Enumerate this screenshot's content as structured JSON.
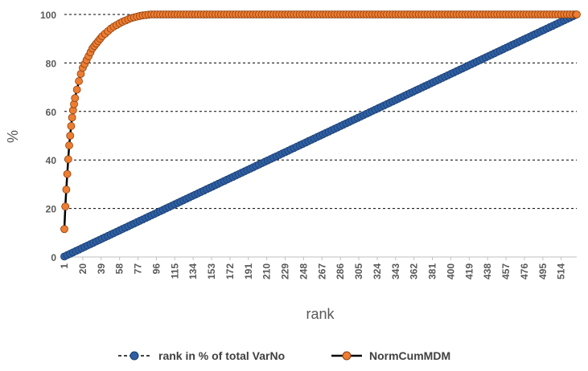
{
  "chart_data": {
    "type": "line",
    "xlabel": "rank",
    "ylabel": "%",
    "x_tick_labels": [
      "1",
      "20",
      "39",
      "58",
      "77",
      "96",
      "115",
      "134",
      "153",
      "172",
      "191",
      "210",
      "229",
      "248",
      "267",
      "286",
      "305",
      "324",
      "343",
      "362",
      "381",
      "400",
      "419",
      "438",
      "457",
      "476",
      "495",
      "514"
    ],
    "xlim": [
      1,
      530
    ],
    "ylim": [
      0,
      100
    ],
    "y_ticks": [
      0,
      20,
      40,
      60,
      80,
      100
    ],
    "grid": "horizontal dashed",
    "legend_position": "bottom",
    "n_points": 530,
    "series": [
      {
        "name": "rank in % of total VarNo",
        "color": "#2e5fa3",
        "style": "dashed-markers",
        "description_points": [
          [
            1,
            0.2
          ],
          [
            530,
            100
          ]
        ]
      },
      {
        "name": "NormCumMDM",
        "color": "#ed7d31",
        "style": "solid-markers",
        "points": [
          [
            1,
            11.5
          ],
          [
            2,
            20.8
          ],
          [
            3,
            27.8
          ],
          [
            4,
            34.2
          ],
          [
            5,
            40.3
          ],
          [
            6,
            46
          ],
          [
            7,
            50
          ],
          [
            8,
            54
          ],
          [
            9,
            57.5
          ],
          [
            10,
            60.5
          ],
          [
            12,
            65.5
          ],
          [
            14,
            69
          ],
          [
            16,
            72.5
          ],
          [
            18,
            75.5
          ],
          [
            20,
            78
          ],
          [
            25,
            82
          ],
          [
            30,
            86
          ],
          [
            35,
            88.5
          ],
          [
            40,
            91
          ],
          [
            50,
            94.5
          ],
          [
            60,
            96.8
          ],
          [
            70,
            98.5
          ],
          [
            80,
            99.5
          ],
          [
            90,
            100
          ],
          [
            530,
            100
          ]
        ]
      }
    ]
  }
}
